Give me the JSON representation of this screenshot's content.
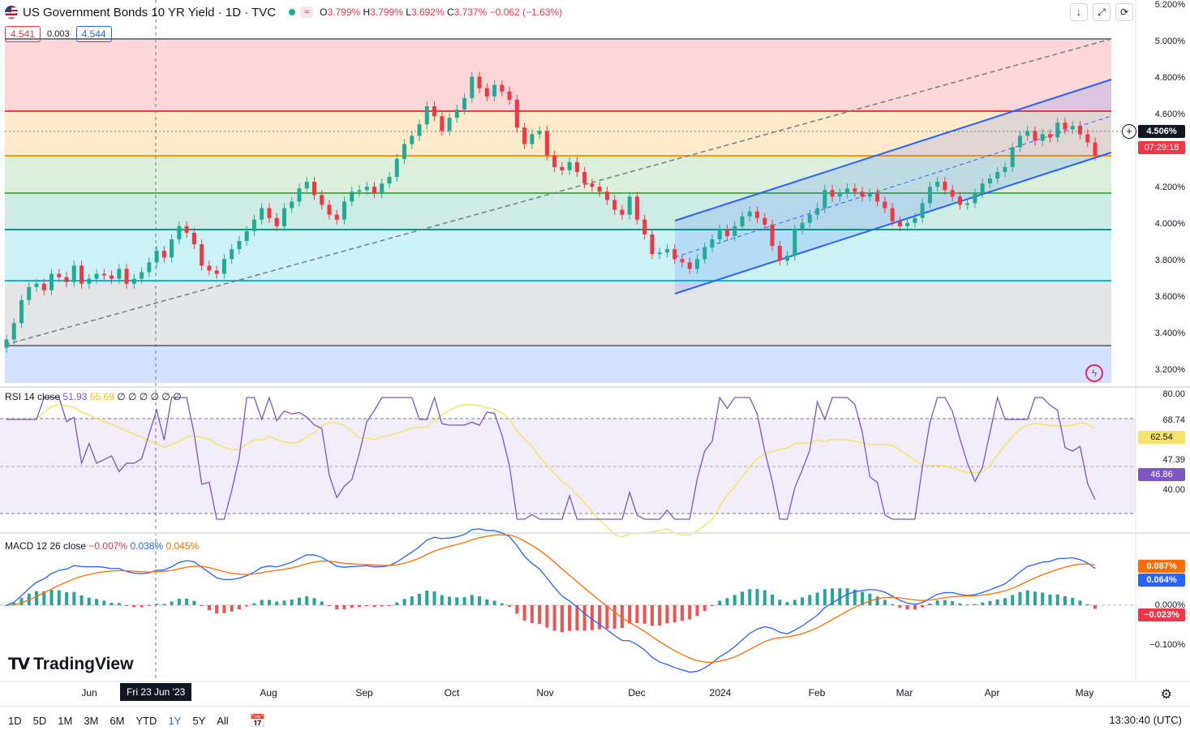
{
  "header": {
    "title": "US Government Bonds 10 YR Yield · 1D · TVC",
    "badge": "≈",
    "open_label": "O",
    "open": "3.799%",
    "high_label": "H",
    "high": "3.799%",
    "low_label": "L",
    "low": "3.692%",
    "close_label": "C",
    "close": "3.737%",
    "change": "−0.062 (−1.63%)"
  },
  "quote": {
    "bid": "4.541",
    "spread": "0.003",
    "ask": "4.544"
  },
  "toolbar": {
    "scroll_icon": "arrow-down-icon",
    "expand_icon": "expand-icon",
    "refresh_icon": "refresh-icon"
  },
  "price_axis": {
    "ticks": [
      "5.200%",
      "5.000%",
      "4.800%",
      "4.600%",
      "4.400%",
      "4.200%",
      "4.000%",
      "3.800%",
      "3.600%",
      "3.400%",
      "3.200%"
    ],
    "current_price": "4.506%",
    "countdown": "07:29:18"
  },
  "rsi": {
    "label": "RSI 14 close",
    "value1": "51.93",
    "value2": "55.69",
    "placeholders": "∅ ∅ ∅ ∅ ∅ ∅",
    "ticks": [
      "80.00",
      "40.00"
    ],
    "upper": "68.74",
    "ma_value": "62.54",
    "mid": "47.39",
    "rsi_value": "46.86"
  },
  "macd": {
    "label": "MACD 12 26 close",
    "hist": "−0.007%",
    "macd": "0.038%",
    "signal": "0.045%",
    "tag_signal": "0.087%",
    "tag_macd": "0.064%",
    "zero": "0.000%",
    "tag_hist": "−0.023%",
    "low_tick": "−0.100%"
  },
  "time_axis": {
    "labels": [
      "Jun",
      "Aug",
      "Sep",
      "Oct",
      "Nov",
      "Dec",
      "2024",
      "Feb",
      "Mar",
      "Apr",
      "May"
    ],
    "cursor_date": "Fri 23 Jun '23"
  },
  "brand": {
    "name": "TradingView"
  },
  "footer": {
    "timeframes": [
      "1D",
      "5D",
      "1M",
      "3M",
      "6M",
      "YTD",
      "1Y",
      "5Y",
      "All"
    ],
    "active": "1Y",
    "clock": "13:30:40 (UTC)"
  },
  "colors": {
    "up": "#22ab94",
    "down": "#f23645",
    "accent": "#2962ff",
    "rsi": "#7e57c2",
    "rsi_ma": "#f7e26b",
    "signal": "#ff6d00"
  },
  "chart_data": {
    "type": "candlestick",
    "title": "US Government Bonds 10 YR Yield · 1D · TVC",
    "x_range": [
      "2023-05-23",
      "2024-05-03"
    ],
    "ylim": [
      3.15,
      5.22
    ],
    "closes": [
      3.38,
      3.48,
      3.62,
      3.7,
      3.72,
      3.68,
      3.78,
      3.76,
      3.73,
      3.83,
      3.72,
      3.75,
      3.78,
      3.77,
      3.75,
      3.81,
      3.72,
      3.75,
      3.79,
      3.85,
      3.92,
      3.88,
      3.99,
      4.07,
      4.03,
      3.96,
      3.83,
      3.8,
      3.78,
      3.87,
      3.93,
      3.98,
      4.04,
      4.11,
      4.18,
      4.12,
      4.07,
      4.18,
      4.22,
      4.3,
      4.34,
      4.26,
      4.2,
      4.14,
      4.11,
      4.22,
      4.28,
      4.29,
      4.31,
      4.27,
      4.33,
      4.37,
      4.48,
      4.57,
      4.62,
      4.69,
      4.8,
      4.74,
      4.65,
      4.73,
      4.78,
      4.85,
      4.98,
      4.91,
      4.86,
      4.93,
      4.89,
      4.84,
      4.67,
      4.57,
      4.63,
      4.65,
      4.5,
      4.43,
      4.41,
      4.46,
      4.4,
      4.33,
      4.31,
      4.28,
      4.23,
      4.17,
      4.14,
      4.25,
      4.11,
      4.02,
      3.9,
      3.91,
      3.93,
      3.87,
      3.85,
      3.81,
      3.87,
      3.94,
      3.99,
      4.05,
      4.01,
      4.07,
      4.13,
      4.16,
      4.12,
      4.08,
      3.95,
      3.86,
      3.89,
      4.05,
      4.09,
      4.14,
      4.18,
      4.29,
      4.25,
      4.27,
      4.3,
      4.28,
      4.25,
      4.27,
      4.22,
      4.18,
      4.1,
      4.07,
      4.09,
      4.12,
      4.21,
      4.31,
      4.34,
      4.29,
      4.25,
      4.2,
      4.21,
      4.27,
      4.33,
      4.36,
      4.4,
      4.43,
      4.55,
      4.62,
      4.65,
      4.59,
      4.63,
      4.61,
      4.7,
      4.66,
      4.68,
      4.63,
      4.58,
      4.5
    ]
  }
}
